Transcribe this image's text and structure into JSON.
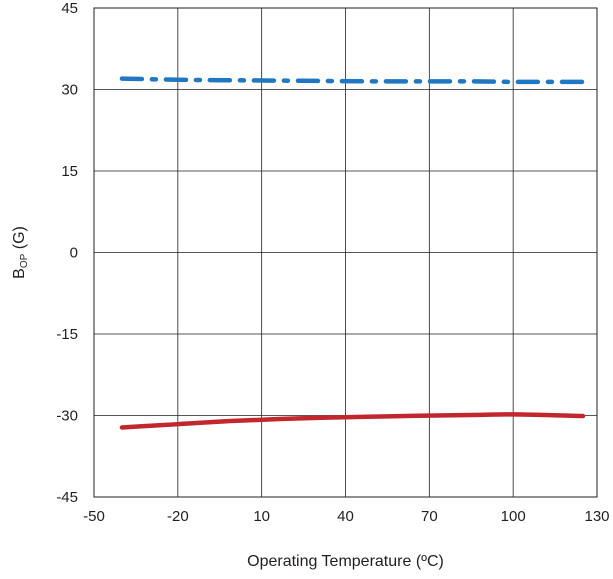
{
  "chart_data": {
    "type": "line",
    "xlabel": "Operating Temperature (ºC)",
    "ylabel_main": "B",
    "ylabel_sub": "OP",
    "ylabel_unit": " (G)",
    "xlim": [
      -50,
      130
    ],
    "ylim": [
      -45,
      45
    ],
    "x_ticks": [
      -50,
      -20,
      10,
      40,
      70,
      100,
      130
    ],
    "y_ticks": [
      -45,
      -30,
      -15,
      0,
      15,
      30,
      45
    ],
    "grid": true,
    "legend": "none",
    "series": [
      {
        "color": "#1f78c1",
        "style": "dash-dot",
        "x": [
          -40,
          -20,
          0,
          25,
          50,
          85,
          100,
          125
        ],
        "y": [
          32.0,
          31.8,
          31.7,
          31.6,
          31.5,
          31.5,
          31.4,
          31.4
        ]
      },
      {
        "color": "#c1272d",
        "style": "solid",
        "x": [
          -40,
          -20,
          0,
          25,
          50,
          85,
          100,
          125
        ],
        "y": [
          -32.2,
          -31.6,
          -31.0,
          -30.5,
          -30.2,
          -29.9,
          -29.8,
          -30.1
        ]
      }
    ]
  }
}
